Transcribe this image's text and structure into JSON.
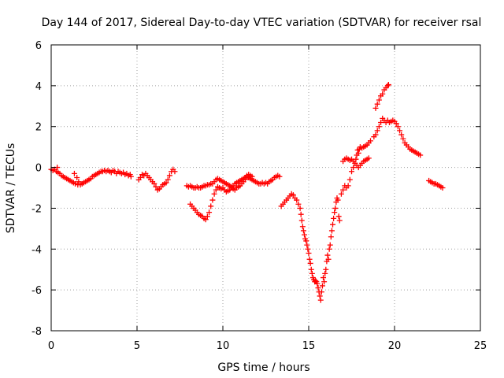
{
  "chart_data": {
    "type": "scatter",
    "title": "Day 144 of 2017, Sidereal Day-to-day VTEC variation (SDTVAR) for receiver rsal",
    "xlabel": "GPS time / hours",
    "ylabel": "SDTVAR / TECUs",
    "xlim": [
      0,
      25
    ],
    "ylim": [
      -8,
      6
    ],
    "xticks": [
      0,
      5,
      10,
      15,
      20,
      25
    ],
    "yticks": [
      -8,
      -6,
      -4,
      -2,
      0,
      2,
      4,
      6
    ],
    "grid": true,
    "marker": "+",
    "color": "#ff0000",
    "series": [
      {
        "points": [
          [
            0.0,
            -0.1
          ],
          [
            0.1,
            -0.15
          ],
          [
            0.2,
            -0.1
          ],
          [
            0.3,
            -0.2
          ],
          [
            0.35,
            0.0
          ],
          [
            0.4,
            -0.25
          ],
          [
            0.5,
            -0.3
          ],
          [
            0.6,
            -0.4
          ],
          [
            0.7,
            -0.45
          ],
          [
            0.8,
            -0.5
          ],
          [
            0.9,
            -0.55
          ],
          [
            1.0,
            -0.6
          ],
          [
            1.1,
            -0.65
          ],
          [
            1.2,
            -0.7
          ],
          [
            1.3,
            -0.75
          ],
          [
            1.35,
            -0.3
          ],
          [
            1.4,
            -0.8
          ],
          [
            1.5,
            -0.5
          ],
          [
            1.55,
            -0.85
          ],
          [
            1.6,
            -0.7
          ],
          [
            1.7,
            -0.85
          ],
          [
            1.8,
            -0.8
          ],
          [
            1.9,
            -0.75
          ],
          [
            2.0,
            -0.7
          ],
          [
            2.1,
            -0.65
          ],
          [
            2.2,
            -0.6
          ],
          [
            2.3,
            -0.55
          ],
          [
            2.4,
            -0.45
          ],
          [
            2.5,
            -0.4
          ],
          [
            2.6,
            -0.35
          ],
          [
            2.7,
            -0.3
          ],
          [
            2.8,
            -0.25
          ],
          [
            2.9,
            -0.2
          ],
          [
            3.0,
            -0.2
          ],
          [
            3.1,
            -0.15
          ],
          [
            3.2,
            -0.2
          ],
          [
            3.3,
            -0.15
          ],
          [
            3.4,
            -0.2
          ],
          [
            3.5,
            -0.25
          ],
          [
            3.6,
            -0.15
          ],
          [
            3.7,
            -0.2
          ],
          [
            3.8,
            -0.3
          ],
          [
            3.9,
            -0.2
          ],
          [
            4.0,
            -0.25
          ],
          [
            4.1,
            -0.3
          ],
          [
            4.2,
            -0.25
          ],
          [
            4.3,
            -0.35
          ],
          [
            4.4,
            -0.3
          ],
          [
            4.5,
            -0.4
          ],
          [
            4.6,
            -0.35
          ],
          [
            4.65,
            -0.45
          ]
        ]
      },
      {
        "points": [
          [
            5.1,
            -0.6
          ],
          [
            5.2,
            -0.5
          ],
          [
            5.3,
            -0.35
          ],
          [
            5.4,
            -0.4
          ],
          [
            5.5,
            -0.3
          ],
          [
            5.6,
            -0.4
          ],
          [
            5.7,
            -0.5
          ],
          [
            5.8,
            -0.6
          ],
          [
            5.9,
            -0.7
          ],
          [
            6.0,
            -0.8
          ],
          [
            6.1,
            -0.95
          ],
          [
            6.2,
            -1.1
          ],
          [
            6.3,
            -1.05
          ],
          [
            6.4,
            -0.95
          ],
          [
            6.5,
            -0.85
          ],
          [
            6.6,
            -0.8
          ],
          [
            6.7,
            -0.75
          ],
          [
            6.8,
            -0.6
          ],
          [
            6.9,
            -0.4
          ],
          [
            7.0,
            -0.2
          ],
          [
            7.1,
            -0.1
          ],
          [
            7.2,
            -0.2
          ]
        ]
      },
      {
        "points": [
          [
            7.9,
            -0.9
          ],
          [
            8.0,
            -0.95
          ],
          [
            8.1,
            -0.9
          ],
          [
            8.2,
            -0.95
          ],
          [
            8.3,
            -1.0
          ],
          [
            8.4,
            -1.0
          ],
          [
            8.5,
            -0.95
          ],
          [
            8.6,
            -1.0
          ],
          [
            8.7,
            -1.0
          ],
          [
            8.8,
            -0.95
          ],
          [
            8.9,
            -0.9
          ],
          [
            9.0,
            -0.9
          ],
          [
            9.1,
            -0.85
          ],
          [
            9.2,
            -0.85
          ],
          [
            9.3,
            -0.8
          ],
          [
            9.4,
            -0.8
          ],
          [
            9.5,
            -0.7
          ],
          [
            9.6,
            -0.6
          ],
          [
            9.7,
            -0.55
          ],
          [
            9.8,
            -0.6
          ],
          [
            9.9,
            -0.65
          ],
          [
            10.0,
            -0.7
          ],
          [
            10.1,
            -0.75
          ],
          [
            10.2,
            -0.8
          ],
          [
            10.3,
            -0.85
          ],
          [
            10.4,
            -0.9
          ],
          [
            10.5,
            -0.95
          ],
          [
            10.6,
            -0.9
          ],
          [
            10.7,
            -0.8
          ],
          [
            10.8,
            -0.75
          ],
          [
            10.9,
            -0.7
          ],
          [
            11.0,
            -0.65
          ],
          [
            11.1,
            -0.6
          ],
          [
            11.2,
            -0.55
          ],
          [
            11.3,
            -0.5
          ],
          [
            11.4,
            -0.45
          ],
          [
            11.5,
            -0.5
          ],
          [
            11.6,
            -0.55
          ],
          [
            11.7,
            -0.6
          ],
          [
            11.8,
            -0.65
          ],
          [
            11.9,
            -0.7
          ],
          [
            12.0,
            -0.75
          ],
          [
            12.1,
            -0.8
          ],
          [
            12.2,
            -0.8
          ],
          [
            12.3,
            -0.75
          ],
          [
            12.4,
            -0.8
          ],
          [
            12.5,
            -0.75
          ],
          [
            12.6,
            -0.8
          ],
          [
            12.7,
            -0.7
          ],
          [
            12.8,
            -0.65
          ],
          [
            12.9,
            -0.6
          ],
          [
            13.0,
            -0.5
          ],
          [
            13.1,
            -0.45
          ],
          [
            13.2,
            -0.4
          ],
          [
            13.3,
            -0.45
          ]
        ]
      },
      {
        "points": [
          [
            9.8,
            -1.0
          ],
          [
            9.9,
            -1.05
          ],
          [
            10.0,
            -1.0
          ],
          [
            10.1,
            -1.1
          ],
          [
            10.2,
            -1.2
          ],
          [
            10.3,
            -1.15
          ],
          [
            10.4,
            -1.1
          ],
          [
            10.5,
            -1.0
          ],
          [
            10.6,
            -1.05
          ],
          [
            10.7,
            -1.1
          ],
          [
            10.8,
            -1.0
          ],
          [
            10.9,
            -0.95
          ],
          [
            11.0,
            -0.9
          ],
          [
            11.1,
            -0.8
          ],
          [
            11.2,
            -0.7
          ],
          [
            11.3,
            -0.6
          ],
          [
            11.4,
            -0.4
          ],
          [
            11.5,
            -0.35
          ],
          [
            11.6,
            -0.4
          ],
          [
            11.7,
            -0.45
          ]
        ]
      },
      {
        "points": [
          [
            8.1,
            -1.8
          ],
          [
            8.2,
            -1.9
          ],
          [
            8.3,
            -2.0
          ],
          [
            8.4,
            -2.1
          ],
          [
            8.5,
            -2.2
          ],
          [
            8.6,
            -2.3
          ],
          [
            8.7,
            -2.35
          ],
          [
            8.8,
            -2.4
          ],
          [
            8.9,
            -2.5
          ],
          [
            9.0,
            -2.55
          ],
          [
            9.1,
            -2.4
          ],
          [
            9.2,
            -2.2
          ],
          [
            9.3,
            -1.9
          ],
          [
            9.4,
            -1.6
          ],
          [
            9.5,
            -1.3
          ],
          [
            9.6,
            -1.1
          ],
          [
            9.7,
            -0.95
          ]
        ]
      },
      {
        "points": [
          [
            13.4,
            -1.9
          ],
          [
            13.5,
            -1.8
          ],
          [
            13.6,
            -1.7
          ],
          [
            13.7,
            -1.6
          ],
          [
            13.8,
            -1.5
          ],
          [
            13.9,
            -1.4
          ],
          [
            14.0,
            -1.3
          ],
          [
            14.1,
            -1.35
          ],
          [
            14.2,
            -1.5
          ],
          [
            14.3,
            -1.6
          ],
          [
            14.4,
            -1.8
          ],
          [
            14.5,
            -2.0
          ],
          [
            14.55,
            -2.3
          ],
          [
            14.6,
            -2.6
          ],
          [
            14.65,
            -2.9
          ],
          [
            14.7,
            -3.1
          ],
          [
            14.75,
            -3.3
          ],
          [
            14.8,
            -3.5
          ],
          [
            14.85,
            -3.6
          ],
          [
            14.9,
            -3.8
          ],
          [
            14.95,
            -4.0
          ],
          [
            15.0,
            -4.2
          ],
          [
            15.05,
            -4.5
          ],
          [
            15.1,
            -4.7
          ],
          [
            15.15,
            -5.0
          ],
          [
            15.2,
            -5.2
          ],
          [
            15.25,
            -5.4
          ],
          [
            15.3,
            -5.5
          ],
          [
            15.35,
            -5.6
          ],
          [
            15.4,
            -5.55
          ],
          [
            15.45,
            -5.6
          ],
          [
            15.5,
            -5.7
          ],
          [
            15.55,
            -5.9
          ],
          [
            15.6,
            -6.1
          ],
          [
            15.65,
            -6.3
          ],
          [
            15.7,
            -6.5
          ],
          [
            15.75,
            -6.1
          ],
          [
            15.8,
            -5.8
          ],
          [
            15.85,
            -5.4
          ],
          [
            15.9,
            -5.6
          ],
          [
            15.95,
            -5.2
          ],
          [
            16.0,
            -5.0
          ],
          [
            16.05,
            -4.6
          ],
          [
            16.1,
            -4.3
          ],
          [
            16.15,
            -4.5
          ],
          [
            16.2,
            -4.0
          ],
          [
            16.25,
            -3.8
          ],
          [
            16.3,
            -3.4
          ],
          [
            16.35,
            -3.1
          ],
          [
            16.4,
            -2.8
          ],
          [
            16.45,
            -2.5
          ],
          [
            16.5,
            -2.2
          ],
          [
            16.55,
            -2.0
          ],
          [
            16.6,
            -1.7
          ],
          [
            16.65,
            -1.5
          ],
          [
            16.7,
            -1.6
          ],
          [
            16.75,
            -2.4
          ],
          [
            16.8,
            -2.6
          ]
        ]
      },
      {
        "points": [
          [
            16.9,
            -1.3
          ],
          [
            17.0,
            -1.1
          ],
          [
            17.1,
            -0.9
          ],
          [
            17.2,
            -1.0
          ],
          [
            17.3,
            -0.9
          ],
          [
            17.4,
            -0.6
          ],
          [
            17.5,
            -0.2
          ],
          [
            17.6,
            0.0
          ],
          [
            17.7,
            0.2
          ],
          [
            17.75,
            0.4
          ],
          [
            17.8,
            0.6
          ],
          [
            17.85,
            0.85
          ],
          [
            17.9,
            0.7
          ],
          [
            17.95,
            0.9
          ],
          [
            18.0,
            1.0
          ],
          [
            18.1,
            0.95
          ],
          [
            18.2,
            1.0
          ],
          [
            18.3,
            1.05
          ],
          [
            18.4,
            1.1
          ],
          [
            18.5,
            1.2
          ],
          [
            18.6,
            1.3
          ]
        ]
      },
      {
        "points": [
          [
            17.0,
            0.3
          ],
          [
            17.1,
            0.4
          ],
          [
            17.2,
            0.45
          ],
          [
            17.3,
            0.4
          ],
          [
            17.4,
            0.35
          ],
          [
            17.5,
            0.4
          ],
          [
            17.6,
            0.3
          ],
          [
            17.7,
            0.2
          ],
          [
            17.8,
            0.1
          ],
          [
            17.9,
            0.0
          ],
          [
            18.0,
            0.1
          ],
          [
            18.1,
            0.2
          ],
          [
            18.2,
            0.3
          ],
          [
            18.3,
            0.35
          ],
          [
            18.4,
            0.4
          ],
          [
            18.5,
            0.45
          ]
        ]
      },
      {
        "points": [
          [
            18.8,
            1.5
          ],
          [
            18.9,
            1.6
          ],
          [
            19.0,
            1.8
          ],
          [
            19.1,
            2.0
          ],
          [
            19.2,
            2.2
          ],
          [
            19.3,
            2.4
          ],
          [
            19.4,
            2.3
          ],
          [
            19.5,
            2.2
          ],
          [
            19.6,
            2.3
          ],
          [
            19.7,
            2.2
          ],
          [
            19.8,
            2.25
          ],
          [
            19.9,
            2.3
          ],
          [
            20.0,
            2.25
          ],
          [
            20.1,
            2.15
          ],
          [
            20.2,
            2.0
          ],
          [
            20.3,
            1.8
          ],
          [
            20.4,
            1.6
          ],
          [
            20.5,
            1.4
          ],
          [
            20.6,
            1.2
          ],
          [
            20.7,
            1.1
          ],
          [
            20.8,
            1.0
          ],
          [
            20.9,
            0.9
          ],
          [
            21.0,
            0.85
          ],
          [
            21.1,
            0.8
          ],
          [
            21.2,
            0.75
          ],
          [
            21.3,
            0.7
          ],
          [
            21.4,
            0.65
          ],
          [
            21.5,
            0.6
          ]
        ]
      },
      {
        "points": [
          [
            18.9,
            2.9
          ],
          [
            19.0,
            3.1
          ],
          [
            19.1,
            3.3
          ],
          [
            19.2,
            3.5
          ],
          [
            19.3,
            3.6
          ],
          [
            19.4,
            3.8
          ],
          [
            19.5,
            3.9
          ],
          [
            19.6,
            4.0
          ],
          [
            19.65,
            4.05
          ]
        ]
      },
      {
        "points": [
          [
            22.0,
            -0.65
          ],
          [
            22.1,
            -0.7
          ],
          [
            22.2,
            -0.75
          ],
          [
            22.3,
            -0.8
          ],
          [
            22.4,
            -0.8
          ],
          [
            22.5,
            -0.85
          ],
          [
            22.6,
            -0.9
          ],
          [
            22.7,
            -0.95
          ],
          [
            22.8,
            -1.0
          ]
        ]
      }
    ]
  }
}
